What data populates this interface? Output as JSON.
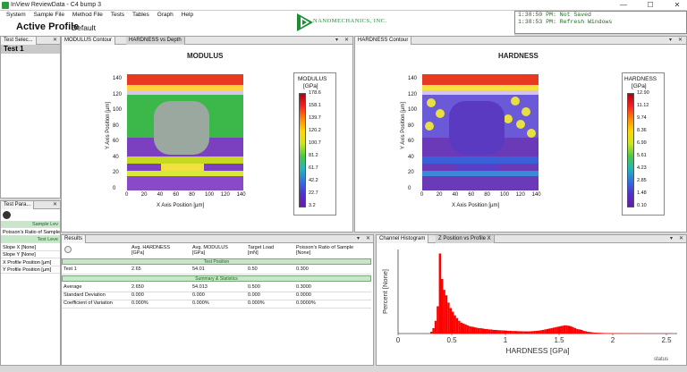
{
  "window": {
    "title": "InView ReviewData - C4 bump 3",
    "controls": [
      "—",
      "☐",
      "✕"
    ]
  },
  "menu": [
    "System",
    "Sample File",
    "Method File",
    "Tests",
    "Tables",
    "Graph",
    "Help"
  ],
  "profile": {
    "label": "Active Profile",
    "value": "Default"
  },
  "logo": {
    "text": "NANOMECHANICS, INC."
  },
  "status_log": [
    "1:38:50 PM: Not Saved",
    "1:38:53 PM: Refresh Windows"
  ],
  "left_top": {
    "tab": "Test Selec...",
    "item": "Test 1"
  },
  "left_bottom": {
    "tab": "Test Para...",
    "rows": [
      {
        "text": "Sample Lev",
        "header": true
      },
      {
        "text": "Poisson's Ratio of Sample",
        "header": false
      },
      {
        "text": "Test Leve",
        "header": true
      },
      {
        "text": "Slope X [None]",
        "header": false
      },
      {
        "text": "Slope Y [None]",
        "header": false
      },
      {
        "text": "X Profile Position [µm]",
        "header": false
      },
      {
        "text": "Y Profile Position [µm]",
        "header": false
      }
    ]
  },
  "modulus_panel": {
    "tabs": [
      "MODULUS Contour",
      "HARDNESS vs Depth"
    ],
    "title": "MODULUS",
    "xlabel": "X Axis Position [µm]",
    "ylabel": "Y Axis Position [µm]",
    "xticks": [
      "0",
      "20",
      "40",
      "60",
      "80",
      "100",
      "120",
      "140"
    ],
    "yticks": [
      "140",
      "120",
      "100",
      "80",
      "60",
      "40",
      "20",
      "0"
    ],
    "colorbar_title": "MODULUS",
    "colorbar_unit": "[GPa]",
    "colorbar_ticks": [
      "178.6",
      "158.1",
      "139.7",
      "120.2",
      "100.7",
      "81.2",
      "61.7",
      "42.2",
      "22.7",
      "3.2"
    ]
  },
  "hardness_panel": {
    "tabs": [
      "HARDNESS Contour"
    ],
    "title": "HARDNESS",
    "xlabel": "X Axis Position [µm]",
    "ylabel": "Y Axis Position [µm]",
    "xticks": [
      "0",
      "20",
      "40",
      "60",
      "80",
      "100",
      "120",
      "140"
    ],
    "yticks": [
      "140",
      "120",
      "100",
      "80",
      "60",
      "40",
      "20",
      "0"
    ],
    "colorbar_title": "HARDNESS",
    "colorbar_unit": "[GPa]",
    "colorbar_ticks": [
      "12.90",
      "11.12",
      "9.74",
      "8.36",
      "6.99",
      "5.61",
      "4.23",
      "2.85",
      "1.48",
      "0.10"
    ]
  },
  "results": {
    "tab": "Results",
    "headers": [
      {
        "line1": "Avg. HARDNESS",
        "line2": "[GPa]"
      },
      {
        "line1": "Avg. MODULUS",
        "line2": "[GPa]"
      },
      {
        "line1": "Target Load",
        "line2": "[mN]"
      },
      {
        "line1": "Poisson's Ratio of Sample",
        "line2": "[None]"
      }
    ],
    "band_test": "Test Position",
    "test_rows": [
      {
        "label": "Test 1",
        "values": [
          "2.65",
          "54.01",
          "0.50",
          "0.300"
        ]
      }
    ],
    "band_stats": "Summary & Statistics",
    "stat_rows": [
      {
        "label": "Average",
        "values": [
          "2.650",
          "54.013",
          "0.500",
          "0.3000"
        ]
      },
      {
        "label": "Standard Deviation",
        "values": [
          "0.000",
          "0.000",
          "0.000",
          "0.0000"
        ]
      },
      {
        "label": "Coefficient of Variation",
        "values": [
          "0.000%",
          "0.000%",
          "0.000%",
          "0.0000%"
        ]
      }
    ]
  },
  "histogram": {
    "tabs": [
      "Channel Histogram",
      "Z Position vs Profile X"
    ],
    "status": "status"
  },
  "chart_data": {
    "type": "bar",
    "xlabel": "HARDNESS [GPa]",
    "ylabel": "Percent [None]",
    "xlim": [
      0,
      2.6
    ],
    "xticks": [
      "0",
      "0.5",
      "1",
      "1.5",
      "2",
      "2.5"
    ],
    "color": "#ff0000",
    "x": [
      0.3,
      0.32,
      0.34,
      0.36,
      0.38,
      0.4,
      0.42,
      0.44,
      0.46,
      0.48,
      0.5,
      0.52,
      0.54,
      0.56,
      0.58,
      0.6,
      0.62,
      0.64,
      0.66,
      0.68,
      0.7,
      0.72,
      0.74,
      0.76,
      0.78,
      0.8,
      0.82,
      0.84,
      0.86,
      0.88,
      0.9,
      0.92,
      0.94,
      0.96,
      0.98,
      1.0,
      1.02,
      1.04,
      1.06,
      1.08,
      1.1,
      1.12,
      1.14,
      1.16,
      1.18,
      1.2,
      1.22,
      1.24,
      1.26,
      1.28,
      1.3,
      1.32,
      1.34,
      1.36,
      1.38,
      1.4,
      1.42,
      1.44,
      1.46,
      1.48,
      1.5,
      1.52,
      1.54,
      1.56,
      1.58,
      1.6,
      1.62,
      1.64,
      1.66,
      1.68,
      1.7,
      1.72,
      1.74,
      1.76,
      1.78,
      1.8,
      1.82,
      1.84,
      1.86,
      1.88,
      1.9,
      1.92,
      1.94,
      1.96,
      1.98,
      2.0,
      2.05,
      2.1,
      2.15,
      2.2,
      2.25,
      2.3,
      2.35,
      2.4,
      2.45,
      2.5
    ],
    "values": [
      2,
      6,
      14,
      30,
      88,
      60,
      48,
      42,
      34,
      28,
      24,
      20,
      17,
      14,
      12,
      11,
      10,
      9,
      8,
      7.5,
      7,
      6.5,
      6,
      6,
      5.5,
      5,
      5,
      4.5,
      4.5,
      4,
      4,
      3.8,
      3.6,
      3.5,
      3.4,
      3.2,
      3,
      3,
      2.8,
      2.8,
      2.6,
      2.6,
      2.5,
      2.5,
      2.4,
      2.4,
      2.5,
      2.6,
      2.8,
      3,
      3.2,
      3.6,
      4,
      4.5,
      5,
      5.5,
      6,
      6.5,
      7,
      7.5,
      8,
      8.5,
      9,
      9,
      8.5,
      8,
      7,
      6,
      5,
      4.5,
      4,
      3,
      2.5,
      2,
      1.6,
      1.3,
      1,
      0.9,
      0.8,
      0.7,
      0.6,
      0.5,
      0.5,
      0.4,
      0.4,
      0.3,
      0.3,
      0.2,
      0.2,
      0.2,
      0.1,
      0.1,
      0.1,
      0.1,
      0.1,
      0.1
    ]
  }
}
